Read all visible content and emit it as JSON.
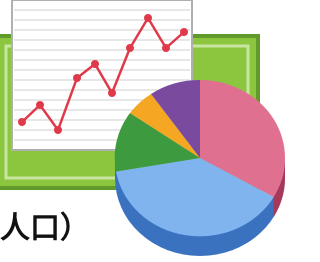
{
  "caption": "人口）"
}
